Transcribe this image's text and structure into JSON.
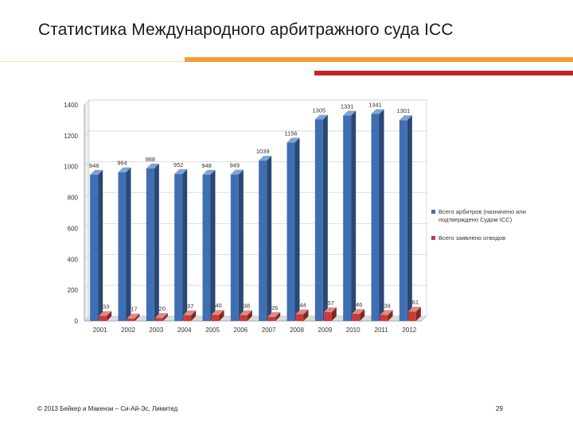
{
  "slide": {
    "title": "Статистика Международного арбитражного суда ICC",
    "footer_copyright": "© 2013 Бейкер и Макензи – Си-Ай-Эс, Лимитед",
    "page_number": "29"
  },
  "colors": {
    "series_1": "#3f6fb3",
    "series_2": "#c83c38",
    "accent_orange": "#f0a030",
    "accent_red": "#c0262d"
  },
  "chart_data": {
    "type": "bar",
    "categories": [
      "2001",
      "2002",
      "2003",
      "2004",
      "2005",
      "2006",
      "2007",
      "2008",
      "2009",
      "2010",
      "2011",
      "2012"
    ],
    "series": [
      {
        "name": "Всего арбитров (назначено или подтверждено Судом ICC)",
        "values": [
          948,
          964,
          988,
          952,
          948,
          949,
          1039,
          1156,
          1305,
          1331,
          1341,
          1301
        ]
      },
      {
        "name": "Всего заявлено отводов",
        "values": [
          33,
          17,
          20,
          37,
          40,
          38,
          26,
          44,
          57,
          46,
          39,
          61
        ]
      }
    ],
    "y_ticks": [
      "0",
      "200",
      "400",
      "600",
      "800",
      "1000",
      "1200",
      "1400"
    ],
    "ylim": [
      0,
      1400
    ],
    "grid": true,
    "legend_position": "right",
    "style": "3d"
  }
}
